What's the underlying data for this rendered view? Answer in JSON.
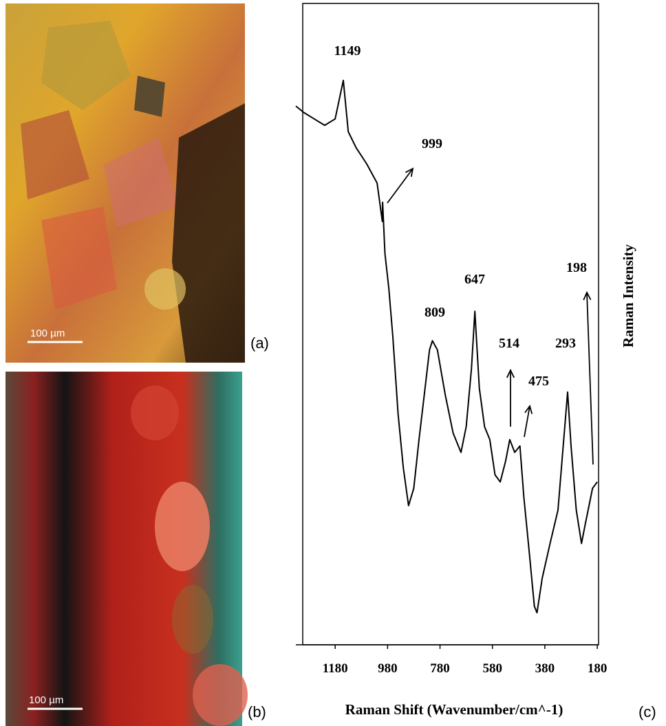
{
  "panels": [
    {
      "tag": "(a)",
      "scale_bar": "100 µm"
    },
    {
      "tag": "(b)",
      "scale_bar": "100 µm"
    }
  ],
  "chart_data": {
    "type": "line",
    "tag": "(c)",
    "x_label": "Raman Shift (Wavenumber/cm^-1)",
    "y_label": "Raman Intensity",
    "xlim": [
      1330,
      175
    ],
    "ylim": [
      0,
      100
    ],
    "xticks": [
      1180,
      980,
      780,
      580,
      380,
      180
    ],
    "color": "#000000",
    "x": [
      1330,
      1300,
      1260,
      1220,
      1180,
      1149,
      1130,
      1100,
      1060,
      1020,
      1000,
      999,
      990,
      975,
      960,
      940,
      920,
      900,
      880,
      860,
      840,
      820,
      809,
      790,
      760,
      730,
      700,
      680,
      660,
      647,
      630,
      610,
      590,
      570,
      550,
      530,
      514,
      495,
      475,
      460,
      440,
      420,
      410,
      390,
      360,
      330,
      310,
      293,
      280,
      260,
      240,
      225,
      210,
      198,
      180
    ],
    "y": [
      84,
      83,
      82,
      81,
      82,
      88,
      80,
      77.5,
      75,
      72,
      66,
      69,
      61,
      55.5,
      48,
      36,
      27.6,
      21.7,
      24.4,
      32,
      39,
      46,
      47.4,
      46,
      39,
      33,
      30,
      34,
      43,
      52,
      40,
      34,
      32,
      26.5,
      25.4,
      28.6,
      32,
      30,
      31,
      23,
      14.7,
      6,
      5,
      10.4,
      15.8,
      21,
      31,
      39.4,
      31,
      21,
      15.8,
      19,
      22,
      24.4,
      25.4
    ],
    "peaks": [
      1149,
      999,
      809,
      647,
      514,
      475,
      293,
      198
    ]
  }
}
